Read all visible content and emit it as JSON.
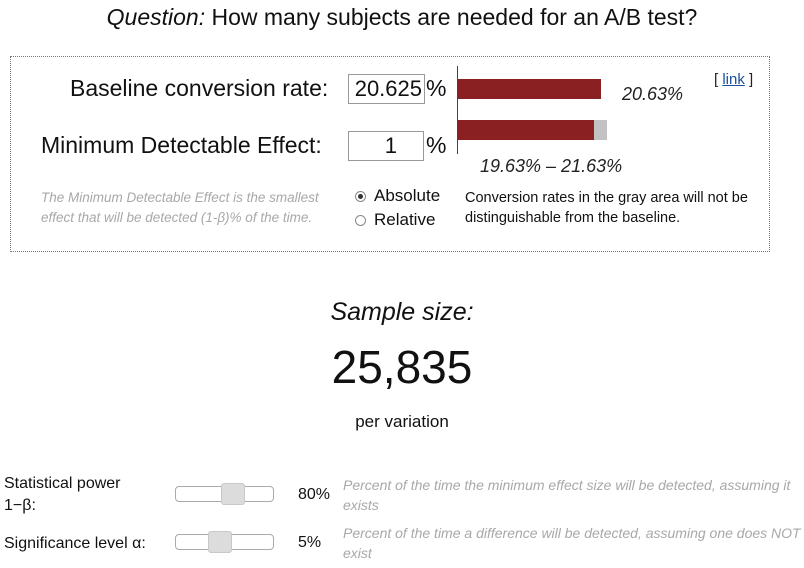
{
  "header": {
    "question_label": "Question:",
    "question_text": " How many subjects are needed for an A/B test?"
  },
  "inputs": {
    "baseline": {
      "label": "Baseline conversion rate:",
      "value": "20.625",
      "unit": "%"
    },
    "mde": {
      "label": "Minimum Detectable Effect:",
      "value": "1",
      "unit": "%"
    }
  },
  "mde_note": "The Minimum Detectable Effect is the smallest effect that will be detected (1-β)% of the time.",
  "mode": {
    "options": [
      {
        "label": "Absolute",
        "selected": true
      },
      {
        "label": "Relative",
        "selected": false
      }
    ]
  },
  "bars": {
    "baseline_label": "20.63%",
    "range_label": "19.63% – 21.63%",
    "note": "Conversion rates in the gray area will not be distinguishable from the baseline.",
    "colors": {
      "bar": "#8b2022",
      "gray": "#c2c2c2"
    }
  },
  "link": {
    "open": "[ ",
    "label": "link",
    "close": " ]"
  },
  "result": {
    "label": "Sample size:",
    "value": "25,835",
    "sub": "per variation"
  },
  "params": {
    "power": {
      "label_line1": "Statistical power",
      "label_line2": "1−β:",
      "value": "80%",
      "level": 0.8,
      "note": "Percent of the time the minimum effect size will be detected, assuming it exists"
    },
    "significance": {
      "label": "Significance level α:",
      "value": "5%",
      "level": 0.05,
      "note": "Percent of the time a difference will be detected, assuming one does NOT exist"
    }
  }
}
